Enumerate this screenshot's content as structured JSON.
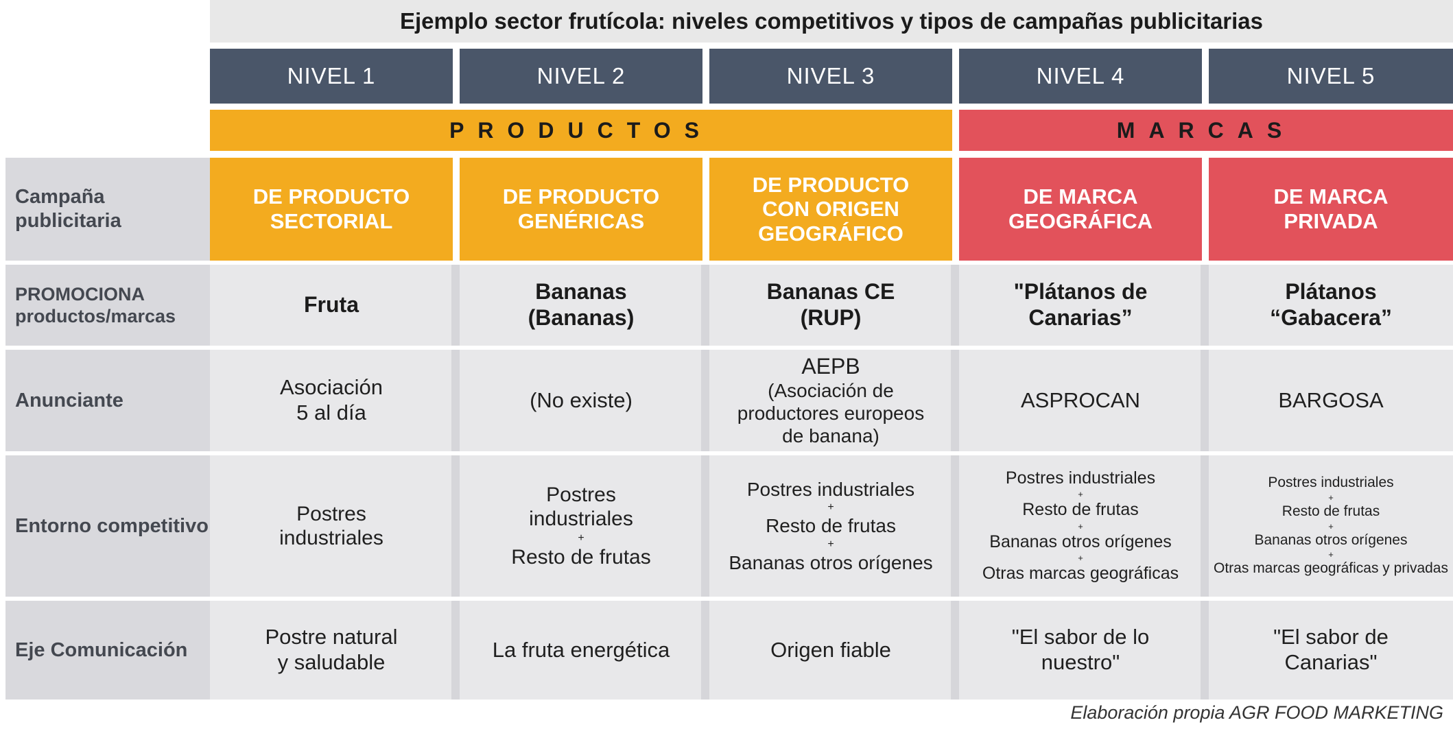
{
  "title": "Ejemplo sector frutícola: niveles competitivos y tipos de campañas publicitarias",
  "niveles": [
    "NIVEL 1",
    "NIVEL 2",
    "NIVEL 3",
    "NIVEL 4",
    "NIVEL 5"
  ],
  "bands": {
    "productos": "PRODUCTOS",
    "marcas": "MARCAS"
  },
  "colors": {
    "header_dark": "#4a5669",
    "productos": "#f3ab1f",
    "marcas": "#e2525b",
    "label_bg": "#d9d9dd",
    "cell_bg": "#e8e8ea"
  },
  "row_labels": {
    "campana": "Campaña publicitaria",
    "promociona": "PROMOCIONA productos/marcas",
    "anunciante": "Anunciante",
    "entorno": "Entorno competitivo",
    "eje": "Eje Comunicación"
  },
  "campana": [
    [
      "DE PRODUCTO",
      "SECTORIAL"
    ],
    [
      "DE PRODUCTO",
      "GENÉRICAS"
    ],
    [
      "DE PRODUCTO",
      "CON ORIGEN",
      "GEOGRÁFICO"
    ],
    [
      "DE MARCA",
      "GEOGRÁFICA"
    ],
    [
      "DE MARCA",
      "PRIVADA"
    ]
  ],
  "promociona": [
    [
      "Fruta"
    ],
    [
      "Bananas",
      "(Bananas)"
    ],
    [
      "Bananas CE",
      "(RUP)"
    ],
    [
      "\"Plátanos de",
      "Canarias”"
    ],
    [
      "Plátanos",
      "“Gabacera”"
    ]
  ],
  "anunciante": {
    "n1": [
      "Asociación",
      "5 al día"
    ],
    "n2": "(No existe)",
    "n3_title": "AEPB",
    "n3_detail": [
      "(Asociación de",
      "productores europeos",
      "de banana)"
    ],
    "n4": "ASPROCAN",
    "n5": "BARGOSA"
  },
  "entorno": {
    "plus": "+",
    "n1": [
      "Postres",
      "industriales"
    ],
    "n2": [
      "Postres",
      "industriales",
      "Resto de frutas"
    ],
    "n3": [
      "Postres industriales",
      "Resto de frutas",
      "Bananas otros orígenes"
    ],
    "n4": [
      "Postres industriales",
      "Resto de frutas",
      "Bananas otros orígenes",
      "Otras marcas geográficas"
    ],
    "n5": [
      "Postres industriales",
      "Resto de frutas",
      "Bananas otros orígenes",
      "Otras marcas geográficas y privadas"
    ]
  },
  "eje": [
    [
      "Postre natural",
      "y saludable"
    ],
    [
      "La fruta energética"
    ],
    [
      "Origen fiable"
    ],
    [
      "\"El sabor de lo",
      "nuestro\""
    ],
    [
      "\"El sabor de",
      "Canarias\""
    ]
  ],
  "credit": "Elaboración propia AGR FOOD MARKETING"
}
